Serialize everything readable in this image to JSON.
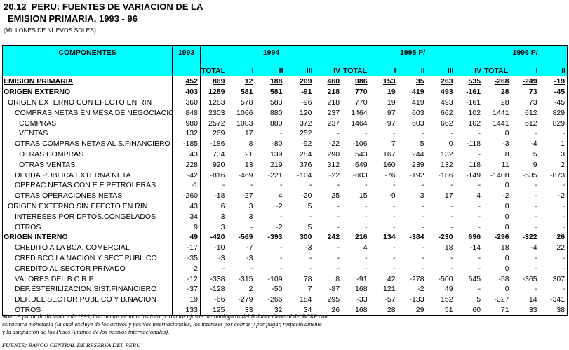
{
  "header": {
    "title_line1": "20.12  PERU: FUENTES DE VARIACION DE LA",
    "title_line2": "EMISION PRIMARIA, 1993 - 96",
    "units": "(MILLONES DE NUEVOS SOLES)"
  },
  "table": {
    "component_header": "COMPONENTES",
    "year_header": "1993",
    "groups": [
      {
        "label": "1994",
        "subcolumns": [
          "TOTAL",
          "I",
          "II",
          "III",
          "IV"
        ]
      },
      {
        "label": "1995 P/",
        "subcolumns": [
          "TOTAL",
          "I",
          "II",
          "III",
          "IV"
        ]
      },
      {
        "label": "1996 P/",
        "subcolumns": [
          "TOTAL",
          "I",
          "II"
        ]
      }
    ],
    "rows": [
      [
        "EMISION PRIMARIA",
        "452",
        "869",
        "12",
        "188",
        "209",
        "460",
        "986",
        "153",
        "35",
        "263",
        "535",
        "-268",
        "-249",
        "-19"
      ],
      [
        "ORIGEN EXTERNO",
        "403",
        "1289",
        "581",
        "581",
        "-91",
        "218",
        "770",
        "19",
        "419",
        "493",
        "-161",
        "28",
        "73",
        "-45"
      ],
      [
        "ORIGEN EXTERNO CON EFECTO EN RIN",
        "360",
        "1283",
        "578",
        "583",
        "-96",
        "218",
        "770",
        "19",
        "419",
        "493",
        "-161",
        "28",
        "73",
        "-45"
      ],
      [
        "COMPRAS NETAS EN MESA DE NEGOCIACION",
        "848",
        "2303",
        "1066",
        "880",
        "120",
        "237",
        "1464",
        "97",
        "603",
        "662",
        "102",
        "1441",
        "612",
        "829"
      ],
      [
        "COMPRAS",
        "980",
        "2572",
        "1083",
        "880",
        "372",
        "237",
        "1464",
        "97",
        "603",
        "662",
        "102",
        "1441",
        "612",
        "829"
      ],
      [
        "VENTAS",
        "132",
        "269",
        "17",
        "-",
        "252",
        "-",
        "-",
        "-",
        "-",
        "-",
        "-",
        "0",
        "-",
        "-"
      ],
      [
        "OTRAS COMPRAS NETAS AL S.FINANCIERO",
        "-185",
        "-186",
        "8",
        "-80",
        "-92",
        "-22",
        "-106",
        "7",
        "5",
        "0",
        "-118",
        "-3",
        "-4",
        "1"
      ],
      [
        "OTRAS COMPRAS",
        "43",
        "734",
        "21",
        "139",
        "284",
        "290",
        "543",
        "167",
        "244",
        "132",
        "-",
        "8",
        "5",
        "3"
      ],
      [
        "OTRAS VENTAS",
        "228",
        "920",
        "13",
        "219",
        "376",
        "312",
        "649",
        "160",
        "239",
        "132",
        "118",
        "11",
        "9",
        "2"
      ],
      [
        "DEUDA PUBLICA EXTERNA NETA",
        "-42",
        "-816",
        "-469",
        "-221",
        "-104",
        "-22",
        "-603",
        "-76",
        "-192",
        "-186",
        "-149",
        "-1408",
        "-535",
        "-873"
      ],
      [
        "OPERAC.NETAS CON E.E.PETROLERAS",
        "-1",
        "-",
        "-",
        "-",
        "-",
        "-",
        "-",
        "-",
        "-",
        "-",
        "-",
        "0",
        "-",
        "-"
      ],
      [
        "OTRAS OPERACIONES NETAS",
        "-260",
        "-18",
        "-27",
        "4",
        "-20",
        "25",
        "15",
        "-9",
        "3",
        "17",
        "4",
        "-2",
        "-",
        "-2"
      ],
      [
        "ORIGEN EXTERNO SIN EFECTO EN RIN",
        "43",
        "6",
        "3",
        "-2",
        "5",
        "-",
        "-",
        "-",
        "-",
        "-",
        "-",
        "0",
        "-",
        "-"
      ],
      [
        "INTERESES POR DPTOS.CONGELADOS",
        "34",
        "3",
        "3",
        "-",
        "-",
        "-",
        "-",
        "-",
        "-",
        "-",
        "-",
        "0",
        "-",
        "-"
      ],
      [
        "OTROS",
        "9",
        "3",
        "-",
        "-2",
        "5",
        "-",
        "-",
        "-",
        "-",
        "-",
        "-",
        "0",
        "-",
        "-"
      ],
      [
        "ORIGEN INTERNO",
        "49",
        "-420",
        "-569",
        "-393",
        "300",
        "242",
        "216",
        "134",
        "-384",
        "-230",
        "696",
        "-296",
        "-322",
        "26"
      ],
      [
        "CREDITO A LA BCA. COMERCIAL",
        "-17",
        "-10",
        "-7",
        "-",
        "-3",
        "-",
        "4",
        "-",
        "-",
        "18",
        "-14",
        "18",
        "-4",
        "22"
      ],
      [
        "CRED.BCO.LA NACION Y SECT.PUBLICO",
        "-35",
        "-3",
        "-3",
        "-",
        "-",
        "-",
        "-",
        "-",
        "-",
        "-",
        "-",
        "0",
        "-",
        "-"
      ],
      [
        "CREDITO AL SECTOR PRIVADO",
        "-2",
        "-",
        "-",
        "-",
        "-",
        "-",
        "-",
        "-",
        "-",
        "-",
        "-",
        "0",
        "-",
        "-"
      ],
      [
        "VALORES DEL B.C.R.P.",
        "-12",
        "-338",
        "-315",
        "-109",
        "78",
        "8",
        "-91",
        "42",
        "-278",
        "-500",
        "645",
        "-58",
        "-365",
        "307"
      ],
      [
        "DEP.ESTERILIZACION SIST.FINANCIERO",
        "-37",
        "-128",
        "2",
        "-50",
        "7",
        "-87",
        "168",
        "121",
        "-2",
        "49",
        "-",
        "0",
        "-",
        "-"
      ],
      [
        "DEP.DEL SECTOR PUBLICO Y B.NACION",
        "19",
        "-66",
        "-279",
        "-266",
        "184",
        "295",
        "-33",
        "-57",
        "-133",
        "152",
        "5",
        "-327",
        "14",
        "-341"
      ],
      [
        "OTROS",
        "133",
        "125",
        "33",
        "32",
        "34",
        "26",
        "168",
        "28",
        "29",
        "51",
        "60",
        "71",
        "33",
        "38"
      ]
    ]
  },
  "note": [
    "Nota: A partir de diciembre de 1993, las cuentas monetarias incorporan los ajustes metodológicos del Balance General del BCRP con",
    "estructura monetaria (la cual excluye de los activos y pasivos internacionales, los intereses por cobrar y por pagar, respectivamente",
    "y la asignación de los Pesos Andinos de los pasivos internacionales)."
  ],
  "source": "FUENTE: BANCO CENTRAL DE RESERVA DEL PERU"
}
